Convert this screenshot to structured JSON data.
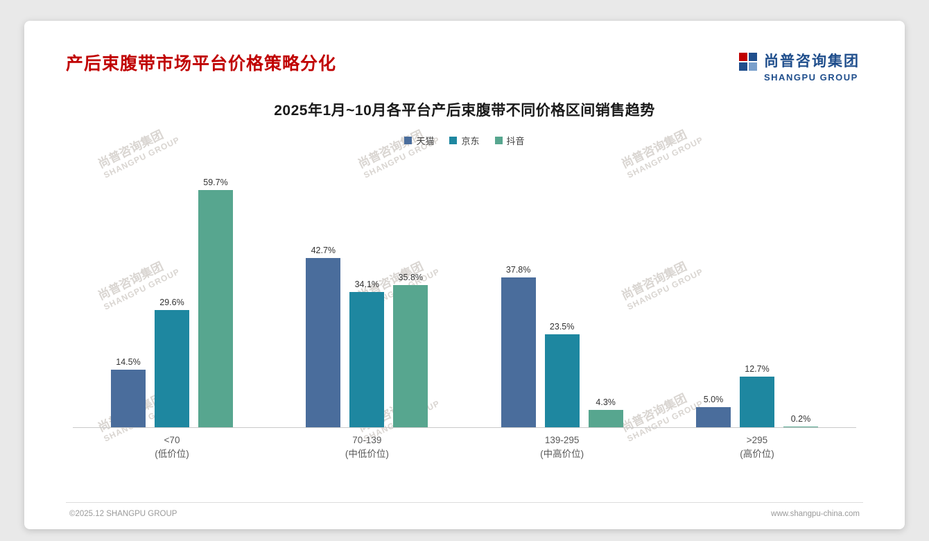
{
  "page": {
    "title": "产后束腹带市场平台价格策略分化",
    "logo": {
      "cn": "尚普咨询集团",
      "en": "SHANGPU GROUP"
    },
    "watermark": {
      "cn": "尚普咨询集团",
      "en": "SHANGPU GROUP"
    },
    "footer": {
      "left": "©2025.12 SHANGPU GROUP",
      "right": "www.shangpu-china.com"
    }
  },
  "chart_data": {
    "type": "bar",
    "title": "2025年1月~10月各平台产后束腹带不同价格区间销售趋势",
    "categories": [
      "<70",
      "70-139",
      "139-295",
      ">295"
    ],
    "category_subs": [
      "(低价位)",
      "(中低价位)",
      "(中高价位)",
      "(高价位)"
    ],
    "series": [
      {
        "name": "天猫",
        "color": "#4a6d9c",
        "values": [
          14.5,
          42.7,
          37.8,
          5.0
        ],
        "labels": [
          "14.5%",
          "42.7%",
          "37.8%",
          "5.0%"
        ]
      },
      {
        "name": "京东",
        "color": "#1e87a0",
        "values": [
          29.6,
          34.1,
          23.5,
          12.7
        ],
        "labels": [
          "29.6%",
          "34.1%",
          "23.5%",
          "12.7%"
        ]
      },
      {
        "name": "抖音",
        "color": "#57a68f",
        "values": [
          59.7,
          35.8,
          4.3,
          0.2
        ],
        "labels": [
          "59.7%",
          "35.8%",
          "4.3%",
          "0.2%"
        ]
      }
    ],
    "value_suffix": "%",
    "ylim": [
      0,
      65
    ],
    "grid": false,
    "legend_position": "top"
  }
}
